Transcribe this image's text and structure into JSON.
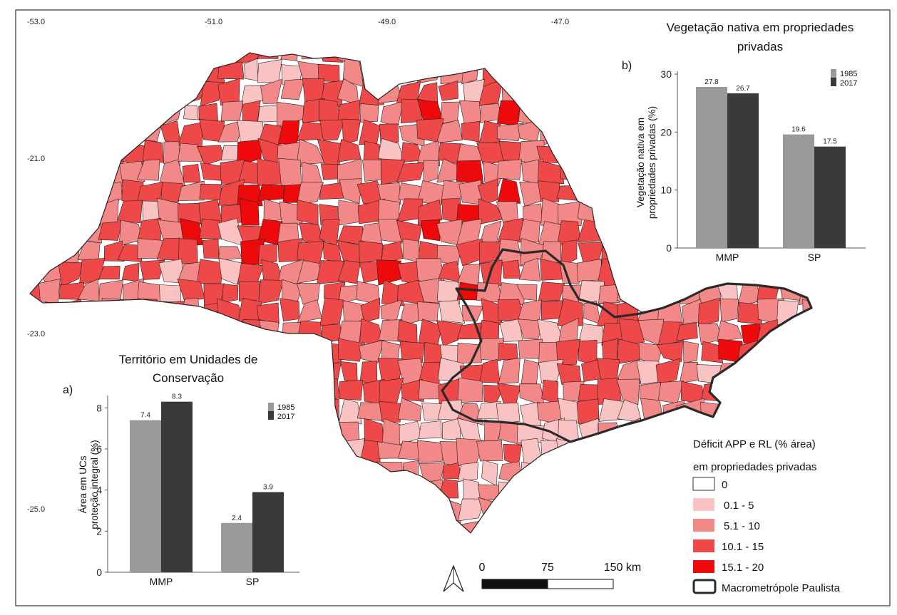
{
  "graticule": {
    "lon_labels": [
      "-53.0",
      "-51.0",
      "-49.0",
      "-47.0"
    ],
    "lat_labels": [
      "-21.0",
      "-23.0",
      "-25.0"
    ]
  },
  "legend": {
    "title_line1": "Déficit APP e RL (% área)",
    "title_line2": "em propriedades privadas",
    "items": [
      {
        "label": "0",
        "color": "#ffffff"
      },
      {
        "label": "0.1 - 5",
        "color": "#f9c3c3"
      },
      {
        "label": "5.1 - 10",
        "color": "#f28888"
      },
      {
        "label": "10.1 - 15",
        "color": "#ee4848"
      },
      {
        "label": "15.1 - 20",
        "color": "#ee0a0a"
      }
    ],
    "boundary_label": "Macrometrópole Paulista"
  },
  "scalebar": {
    "ticks": [
      "0",
      "75",
      "150 km"
    ]
  },
  "colors": {
    "c1985": "#999999",
    "c2017": "#3a3a3a",
    "frame": "#333333",
    "boundary": "#2a2a2a",
    "muni_stroke": "#2b2020"
  },
  "chart_data": [
    {
      "panel": "a)",
      "type": "bar",
      "title_line1": "Território em Unidades de",
      "title_line2": "Conservação",
      "ylabel_line1": "Área em UCs",
      "ylabel_line2": "proteção integral (%)",
      "categories": [
        "MMP",
        "SP"
      ],
      "ylim": [
        0,
        8.6
      ],
      "yticks": [
        0,
        2,
        4,
        6,
        8
      ],
      "series": [
        {
          "name": "1985",
          "values": [
            7.4,
            2.4
          ]
        },
        {
          "name": "2017",
          "values": [
            8.3,
            3.9
          ]
        }
      ],
      "value_labels": [
        [
          "7.4",
          "2.4"
        ],
        [
          "8.3",
          "3.9"
        ]
      ],
      "legend": "top-right",
      "grid": false
    },
    {
      "panel": "b)",
      "type": "bar",
      "title_line1": "Vegetação nativa em propriedades",
      "title_line2": "privadas",
      "ylabel_line1": "Vegetação nativa em",
      "ylabel_line2": "propriedades privadas (%)",
      "categories": [
        "MMP",
        "SP"
      ],
      "ylim": [
        0,
        30.5
      ],
      "yticks": [
        0,
        10,
        20,
        30
      ],
      "series": [
        {
          "name": "1985",
          "values": [
            27.8,
            19.6
          ]
        },
        {
          "name": "2017",
          "values": [
            26.7,
            17.5
          ]
        }
      ],
      "value_labels": [
        [
          "27.8",
          "19.6"
        ],
        [
          "26.7",
          "17.5"
        ]
      ],
      "legend": "top-right",
      "grid": false
    }
  ]
}
